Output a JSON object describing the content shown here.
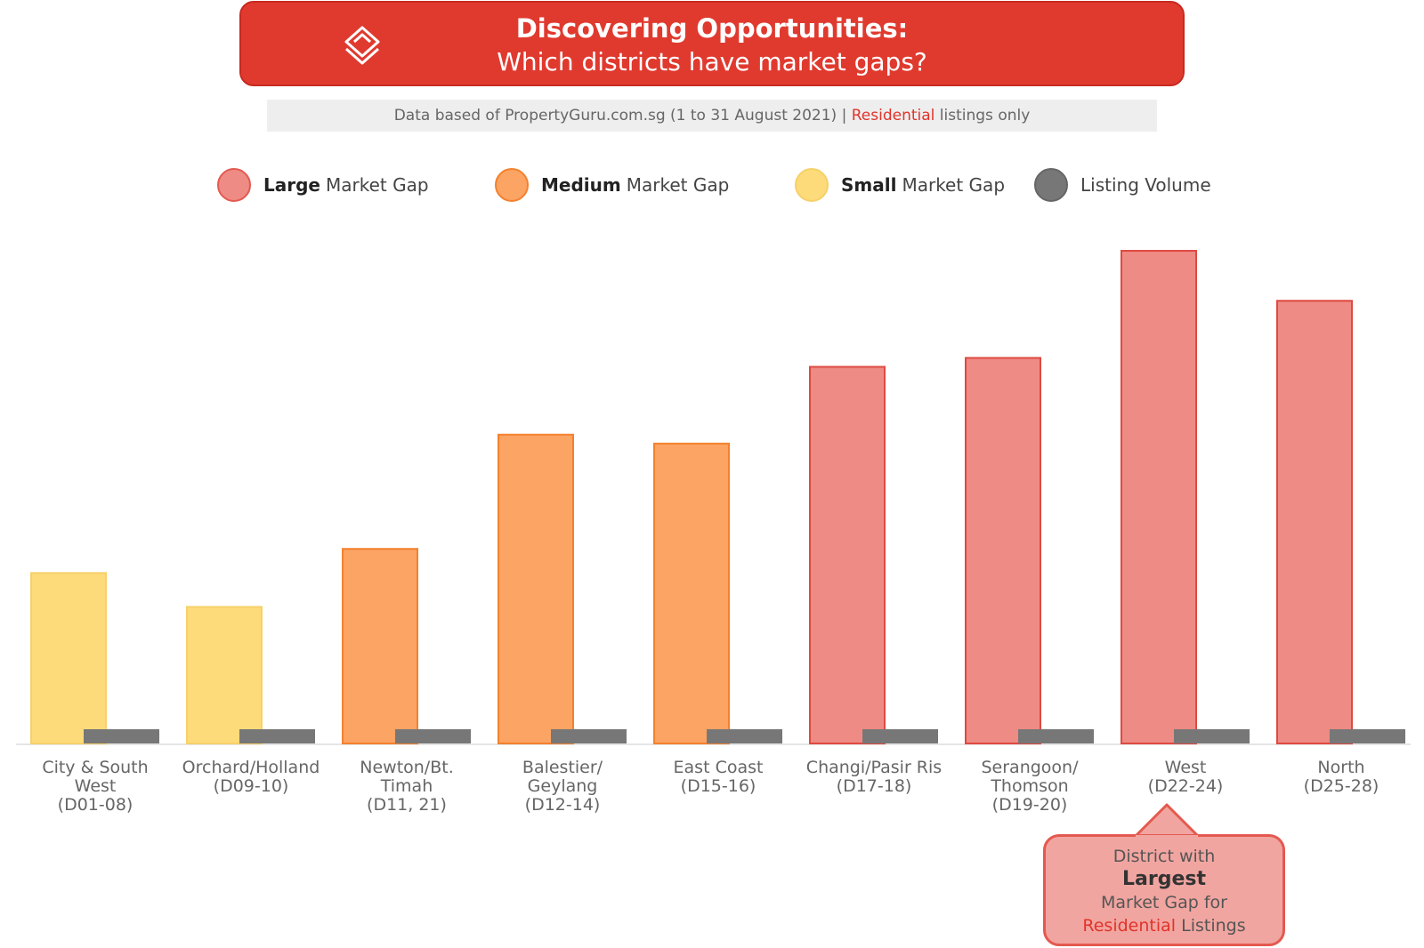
{
  "header": {
    "title_bold": "Discovering Opportunities:",
    "title_sub": "Which districts have market gaps?",
    "logo": "propertyguru-logo-icon"
  },
  "source": {
    "prefix": "Data based of PropertyGuru.com.sg (1 to 31 August 2021) |",
    "highlight": "Residential",
    "suffix": "listings only"
  },
  "legend": [
    {
      "bold": "Large",
      "rest": "Market Gap",
      "color": "#ee8b84"
    },
    {
      "bold": "Medium",
      "rest": "Market Gap",
      "color": "#fba463"
    },
    {
      "bold": "Small",
      "rest": "Market Gap",
      "color": "#fddb7a"
    },
    {
      "bold": "",
      "rest": "Listing Volume",
      "color": "#777777"
    }
  ],
  "chart_data": {
    "type": "bar",
    "categories": [
      [
        "City & South",
        "West",
        "(D01-08)"
      ],
      [
        "Orchard/Holland",
        "(D09-10)"
      ],
      [
        "Newton/Bt.",
        "Timah",
        "(D11, 21)"
      ],
      [
        "Balestier/",
        "Geylang",
        "(D12-14)"
      ],
      [
        "East Coast",
        "(D15-16)"
      ],
      [
        "Changi/Pasir Ris",
        "(D17-18)"
      ],
      [
        "Serangoon/",
        "Thomson",
        "(D19-20)"
      ],
      [
        "West",
        "(D22-24)"
      ],
      [
        "North",
        "(D25-28)"
      ]
    ],
    "series": [
      {
        "name": "Market Gap",
        "values": [
          191,
          153,
          218,
          346,
          336,
          422,
          432,
          552,
          496
        ],
        "gap_size": [
          "Small",
          "Small",
          "Medium",
          "Medium",
          "Medium",
          "Large",
          "Large",
          "Large",
          "Large"
        ]
      },
      {
        "name": "Listing Volume",
        "values": [
          16,
          16,
          16,
          16,
          16,
          16,
          16,
          16,
          16
        ]
      }
    ],
    "colors": {
      "Small": "#fddb7a",
      "Medium": "#fba463",
      "Large": "#ee8b84",
      "volume": "#777777"
    },
    "ylim": [
      0,
      560
    ],
    "grid": false,
    "legend_position": "top"
  },
  "callout": {
    "line1": "District with",
    "bold": "Largest",
    "line3": "Market Gap for",
    "highlight": "Residential",
    "suffix": "Listings"
  }
}
